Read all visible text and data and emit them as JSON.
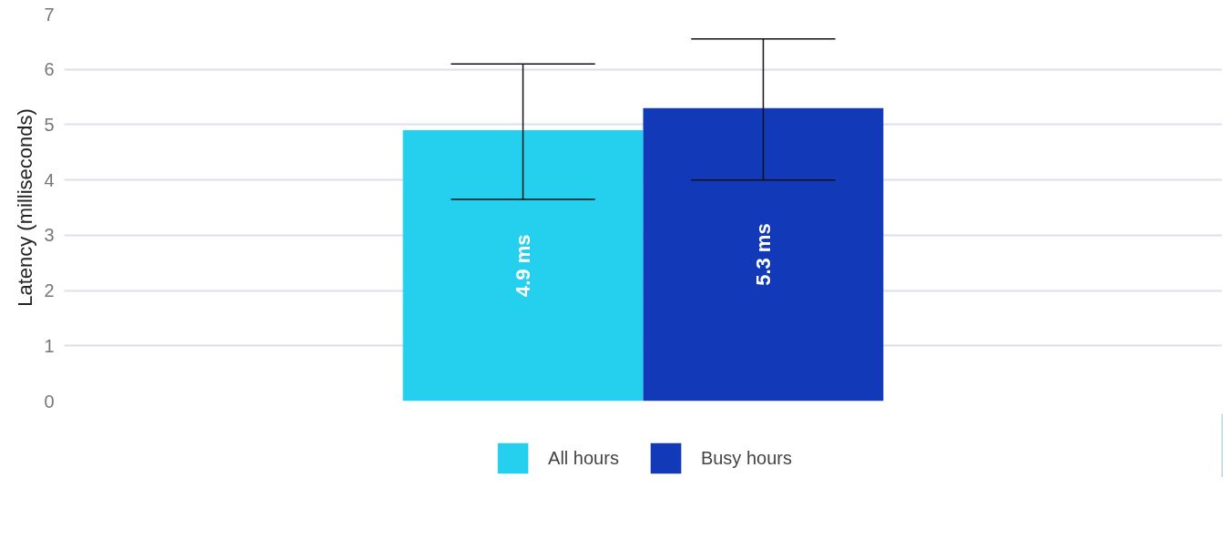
{
  "chart_data": {
    "type": "bar",
    "ylabel": "Latency (milliseconds)",
    "categories": [
      null
    ],
    "series": [
      {
        "name": "All hours",
        "color": "#24d0ee",
        "values": [
          4.9
        ],
        "errors": [
          [
            3.65,
            6.1
          ]
        ],
        "value_labels": [
          "4.9 ms"
        ]
      },
      {
        "name": "Busy hours",
        "color": "#1239b8",
        "values": [
          5.3
        ],
        "errors": [
          [
            4.0,
            6.55
          ]
        ],
        "value_labels": [
          "5.3 ms"
        ]
      }
    ],
    "ylim": [
      0,
      7
    ],
    "yticks": [
      0,
      1,
      2,
      3,
      4,
      5,
      6,
      7
    ],
    "grid": "y",
    "legend": "bottom"
  }
}
